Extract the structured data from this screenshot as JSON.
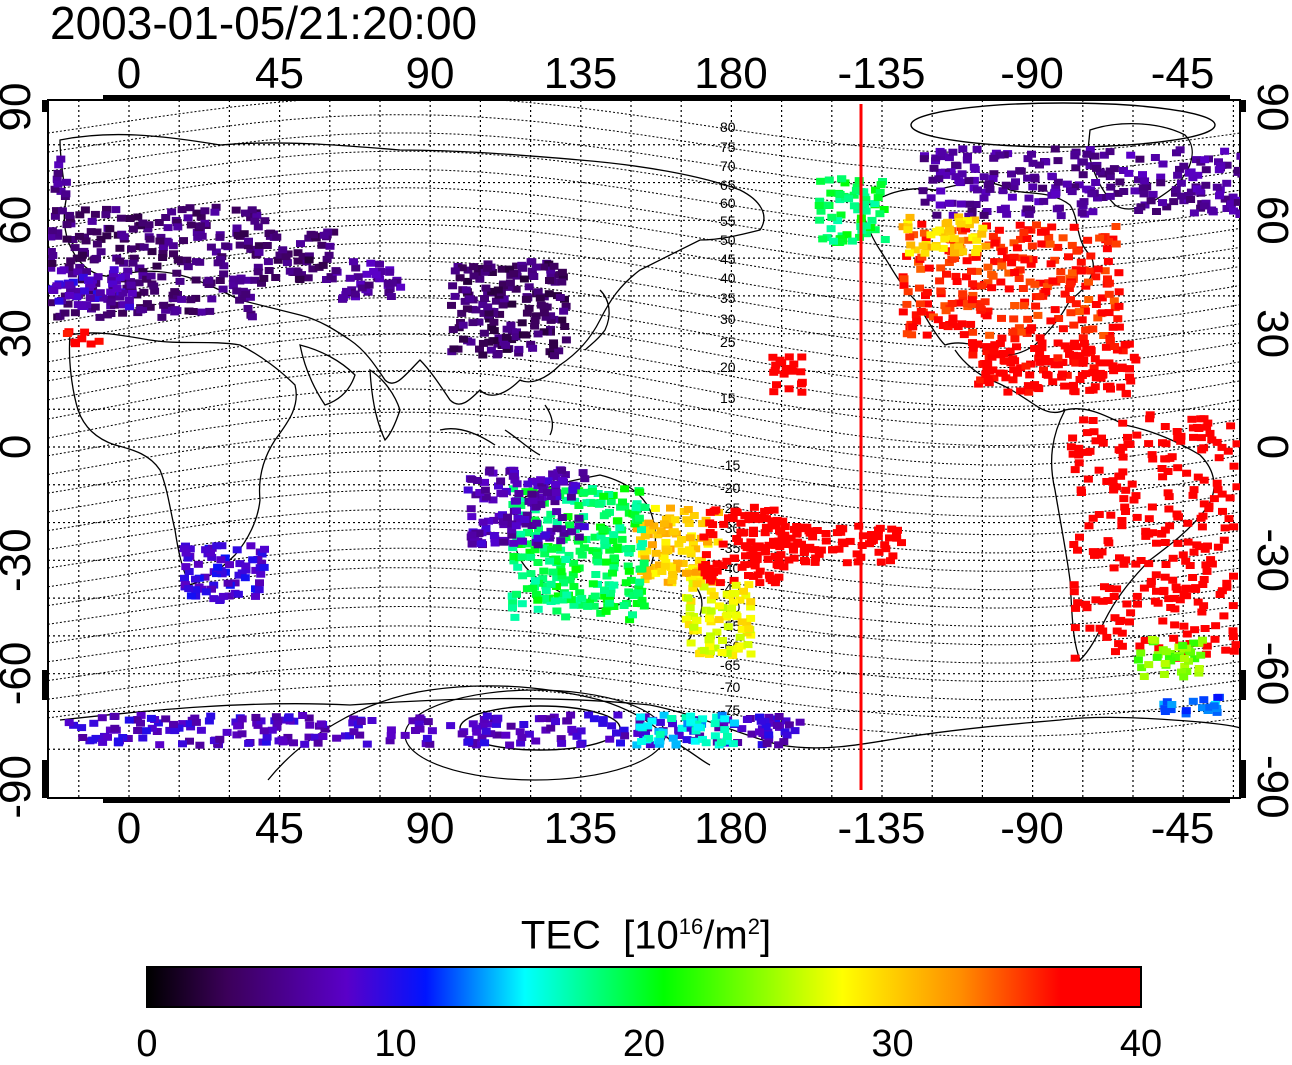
{
  "title": "2003-01-05/21:20:00",
  "map": {
    "x_ticks": [
      "0",
      "45",
      "90",
      "135",
      "180",
      "-135",
      "-90",
      "-45"
    ],
    "y_ticks": [
      "90",
      "60",
      "30",
      "0",
      "-30",
      "-60",
      "-90"
    ],
    "magnetic_latitude_labels": [
      "80",
      "75",
      "70",
      "65",
      "60",
      "55",
      "50",
      "45",
      "40",
      "35",
      "30",
      "25",
      "20",
      "15",
      "-15",
      "-20",
      "-25",
      "-30",
      "-35",
      "-40",
      "-45",
      "-50",
      "-55",
      "-60",
      "-65",
      "-70",
      "-75"
    ],
    "terminator_line_color": "#ff0000"
  },
  "colorbar": {
    "title": "TEC",
    "unit_prefix": "[10",
    "unit_exp": "16",
    "unit_mid": "/m",
    "unit_exp2": "2",
    "unit_suffix": "]",
    "ticks": [
      "0",
      "10",
      "20",
      "30",
      "40"
    ],
    "range": [
      0,
      40
    ]
  }
}
